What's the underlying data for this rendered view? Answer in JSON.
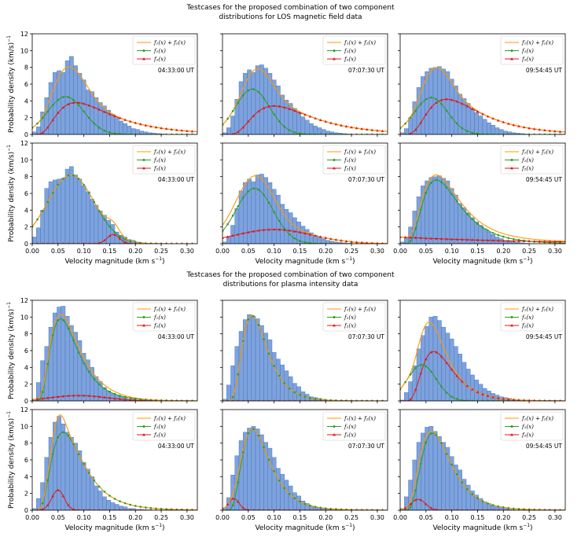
{
  "figure": {
    "group_titles": [
      [
        "Testcases for the proposed combination of two component",
        "distributions for LOS magnetic field data"
      ],
      [
        "Testcases for the proposed combination of two component",
        "distributions for plasma intensity data"
      ]
    ],
    "ylabel": "Probability density (km/s)",
    "ylabel_sup": "−1",
    "xlabel": "Velocity magnitude (km s",
    "xlabel_sup": "−1",
    "xlabel_end": ")",
    "legend": [
      "f₁(x) + f₂(x)",
      "f₁(x)",
      "f₂(x)"
    ],
    "x_ticks": [
      "0.00",
      "0.05",
      "0.10",
      "0.15",
      "0.20",
      "0.25",
      "0.30"
    ],
    "y_ticks": [
      "0",
      "2",
      "4",
      "6",
      "8",
      "10",
      "12"
    ],
    "colors": {
      "hist": "#7ea2dc",
      "hist_edge": "#3f6fbf",
      "sum": "#ff9900",
      "f1": "#2a9e2a",
      "f2": "#e01919"
    }
  },
  "chart_data": [
    {
      "type": "bar",
      "group": "LOS magnetic field",
      "row": 1,
      "col": 1,
      "timestamp": "04:33:00 UT",
      "xlim": [
        0,
        0.32
      ],
      "ylim": [
        0,
        12
      ],
      "bin_width": 0.008,
      "values": [
        0.3,
        0.9,
        2.7,
        4.4,
        6.2,
        7.4,
        7.6,
        7.4,
        8.8,
        9.3,
        8.2,
        7.3,
        6.5,
        5.3,
        5.1,
        4.4,
        3.8,
        3.4,
        2.9,
        2.4,
        2.0,
        1.6,
        1.3,
        1.0,
        0.7,
        0.6,
        0.4,
        0.3,
        0.2,
        0.15,
        0.1,
        0.05,
        0.02,
        0.01,
        0,
        0,
        0,
        0,
        0,
        0
      ],
      "series": [
        {
          "name": "f1",
          "shape": "gauss",
          "amp": 4.5,
          "mu": 0.065,
          "sigma": 0.035
        },
        {
          "name": "f2",
          "shape": "lognorm",
          "amp": 3.8,
          "mode": 0.085,
          "s": 0.6
        }
      ]
    },
    {
      "type": "bar",
      "group": "LOS magnetic field",
      "row": 1,
      "col": 2,
      "timestamp": "07:07:30 UT",
      "xlim": [
        0,
        0.32
      ],
      "ylim": [
        0,
        12
      ],
      "bin_width": 0.008,
      "values": [
        0.2,
        0.8,
        2.2,
        4.2,
        6.3,
        7.3,
        7.7,
        7.4,
        8.2,
        8.3,
        7.9,
        7.3,
        6.5,
        5.8,
        4.7,
        4.1,
        3.7,
        3.1,
        2.6,
        2.1,
        1.7,
        1.3,
        1.0,
        0.8,
        0.6,
        0.4,
        0.3,
        0.2,
        0.15,
        0.1,
        0.05,
        0.02,
        0.01,
        0,
        0,
        0,
        0,
        0,
        0,
        0
      ],
      "series": [
        {
          "name": "f1",
          "shape": "gauss",
          "amp": 5.4,
          "mu": 0.058,
          "sigma": 0.033
        },
        {
          "name": "f2",
          "shape": "lognorm",
          "amp": 3.4,
          "mode": 0.1,
          "s": 0.55
        }
      ]
    },
    {
      "type": "bar",
      "group": "LOS magnetic field",
      "row": 1,
      "col": 3,
      "timestamp": "09:54:45 UT",
      "xlim": [
        0,
        0.32
      ],
      "ylim": [
        0,
        12
      ],
      "bin_width": 0.008,
      "values": [
        0.2,
        0.7,
        2.0,
        3.9,
        5.6,
        6.9,
        7.5,
        7.9,
        8.0,
        8.1,
        7.8,
        7.5,
        6.6,
        5.8,
        4.8,
        4.3,
        3.7,
        3.1,
        2.6,
        2.2,
        1.8,
        1.4,
        1.1,
        0.8,
        0.6,
        0.4,
        0.3,
        0.2,
        0.15,
        0.1,
        0.05,
        0.02,
        0.01,
        0,
        0,
        0,
        0,
        0,
        0,
        0
      ],
      "series": [
        {
          "name": "f1",
          "shape": "gauss",
          "amp": 4.4,
          "mu": 0.06,
          "sigma": 0.032
        },
        {
          "name": "f2",
          "shape": "lognorm",
          "amp": 4.2,
          "mode": 0.09,
          "s": 0.55
        }
      ]
    },
    {
      "type": "bar",
      "group": "LOS magnetic field",
      "row": 2,
      "col": 1,
      "timestamp": "04:33:00 UT",
      "xlim": [
        0,
        0.32
      ],
      "ylim": [
        0,
        12
      ],
      "bin_width": 0.008,
      "values": [
        0.8,
        1.9,
        4.0,
        6.6,
        7.4,
        7.6,
        7.7,
        7.8,
        8.9,
        9.2,
        8.2,
        7.7,
        6.9,
        6.2,
        5.3,
        4.6,
        3.9,
        3.4,
        2.8,
        2.3,
        1.4,
        1.0,
        0.8,
        0.5,
        0.4,
        0.2,
        0.1,
        0.05,
        0.02,
        0,
        0,
        0,
        0,
        0,
        0,
        0,
        0,
        0,
        0,
        0
      ],
      "series": [
        {
          "name": "f1",
          "shape": "gauss",
          "amp": 8.2,
          "mu": 0.075,
          "sigma": 0.045
        },
        {
          "name": "f2",
          "shape": "gauss",
          "amp": 1.1,
          "mu": 0.157,
          "sigma": 0.012
        }
      ]
    },
    {
      "type": "bar",
      "group": "LOS magnetic field",
      "row": 2,
      "col": 2,
      "timestamp": "07:07:30 UT",
      "xlim": [
        0,
        0.32
      ],
      "ylim": [
        0,
        12
      ],
      "bin_width": 0.008,
      "values": [
        0.2,
        0.8,
        2.2,
        4.2,
        6.3,
        7.3,
        7.7,
        7.4,
        8.2,
        8.3,
        7.9,
        7.3,
        6.5,
        5.8,
        4.7,
        4.1,
        3.7,
        3.1,
        2.6,
        2.1,
        1.7,
        1.3,
        1.0,
        0.8,
        0.6,
        0.4,
        0.3,
        0.2,
        0.15,
        0.1,
        0.05,
        0.02,
        0.01,
        0,
        0,
        0,
        0,
        0,
        0,
        0
      ],
      "series": [
        {
          "name": "f1",
          "shape": "gauss",
          "amp": 6.6,
          "mu": 0.062,
          "sigma": 0.036
        },
        {
          "name": "f2",
          "shape": "gauss",
          "amp": 1.7,
          "mu": 0.1,
          "sigma": 0.075
        }
      ]
    },
    {
      "type": "bar",
      "group": "LOS magnetic field",
      "row": 2,
      "col": 3,
      "timestamp": "09:54:45 UT",
      "xlim": [
        0,
        0.32
      ],
      "ylim": [
        0,
        12
      ],
      "bin_width": 0.008,
      "values": [
        0.2,
        0.7,
        2.0,
        3.9,
        5.6,
        6.9,
        7.5,
        7.9,
        8.0,
        8.1,
        7.8,
        7.5,
        6.6,
        5.8,
        4.8,
        4.3,
        3.7,
        3.1,
        2.6,
        2.2,
        1.8,
        1.4,
        1.1,
        0.8,
        0.6,
        0.4,
        0.3,
        0.2,
        0.15,
        0.1,
        0.05,
        0.02,
        0.01,
        0,
        0,
        0,
        0,
        0,
        0,
        0
      ],
      "series": [
        {
          "name": "f1",
          "shape": "lognorm",
          "amp": 7.6,
          "mode": 0.07,
          "s": 0.5
        },
        {
          "name": "f2",
          "shape": "flat",
          "amp": 0.8,
          "decay": 0.0025
        }
      ]
    },
    {
      "type": "bar",
      "group": "plasma intensity",
      "row": 1,
      "col": 1,
      "timestamp": "04:33:00 UT",
      "xlim": [
        0,
        0.32
      ],
      "ylim": [
        0,
        12
      ],
      "bin_width": 0.008,
      "values": [
        0.2,
        2.2,
        4.8,
        6.5,
        8.8,
        10.5,
        11.2,
        11.3,
        10.1,
        9.0,
        8.2,
        7.2,
        5.7,
        4.9,
        4.0,
        2.9,
        2.3,
        1.6,
        1.2,
        0.9,
        0.7,
        0.5,
        0.4,
        0.2,
        0.2,
        0.1,
        0.1,
        0.05,
        0.05,
        0.02,
        0.01,
        0,
        0,
        0,
        0,
        0,
        0,
        0,
        0,
        0
      ],
      "series": [
        {
          "name": "f1",
          "shape": "lognorm",
          "amp": 9.8,
          "mode": 0.055,
          "s": 0.48
        },
        {
          "name": "f2",
          "shape": "gauss",
          "amp": 0.65,
          "mu": 0.09,
          "sigma": 0.055
        }
      ]
    },
    {
      "type": "bar",
      "group": "plasma intensity",
      "row": 1,
      "col": 2,
      "timestamp": "07:07:30 UT",
      "xlim": [
        0,
        0.32
      ],
      "ylim": [
        0,
        12
      ],
      "bin_width": 0.008,
      "values": [
        0.2,
        1.9,
        4.2,
        6.5,
        8.3,
        9.7,
        10.3,
        10.1,
        9.8,
        9.0,
        8.1,
        7.3,
        5.8,
        5.0,
        4.3,
        3.6,
        2.9,
        2.1,
        1.7,
        1.1,
        0.8,
        0.5,
        0.4,
        0.3,
        0.2,
        0.1,
        0.05,
        0.02,
        0.01,
        0,
        0,
        0,
        0,
        0,
        0,
        0,
        0,
        0,
        0,
        0
      ],
      "series": [
        {
          "name": "f1",
          "shape": "lognorm",
          "amp": 10.2,
          "mode": 0.057,
          "s": 0.42
        },
        {
          "name": "f2",
          "shape": "zero"
        }
      ]
    },
    {
      "type": "bar",
      "group": "plasma intensity",
      "row": 1,
      "col": 3,
      "timestamp": "09:54:45 UT",
      "xlim": [
        0,
        0.32
      ],
      "ylim": [
        0,
        12
      ],
      "bin_width": 0.008,
      "values": [
        0.1,
        1.0,
        2.3,
        4.2,
        6.2,
        7.8,
        8.9,
        10.0,
        10.1,
        9.6,
        8.8,
        8.1,
        7.4,
        6.5,
        5.6,
        4.6,
        3.8,
        3.1,
        2.5,
        2.0,
        1.5,
        1.2,
        0.9,
        0.7,
        0.5,
        0.4,
        0.3,
        0.2,
        0.1,
        0.1,
        0.05,
        0.05,
        0.02,
        0.02,
        0.01,
        0,
        0,
        0,
        0,
        0
      ],
      "series": [
        {
          "name": "f1",
          "shape": "gauss",
          "amp": 4.3,
          "mu": 0.042,
          "sigma": 0.028
        },
        {
          "name": "f2",
          "shape": "lognorm",
          "amp": 5.9,
          "mode": 0.065,
          "s": 0.45
        }
      ]
    },
    {
      "type": "bar",
      "group": "plasma intensity",
      "row": 2,
      "col": 1,
      "timestamp": "04:33:00 UT",
      "xlim": [
        0,
        0.32
      ],
      "ylim": [
        0,
        12
      ],
      "bin_width": 0.008,
      "values": [
        0.2,
        1.4,
        3.3,
        6.3,
        8.7,
        10.5,
        11.2,
        10.3,
        9.3,
        8.7,
        8.0,
        7.1,
        5.7,
        4.9,
        4.0,
        2.9,
        2.3,
        1.6,
        1.2,
        0.9,
        0.7,
        0.5,
        0.4,
        0.2,
        0.2,
        0.1,
        0.1,
        0.05,
        0.05,
        0.02,
        0.01,
        0,
        0,
        0,
        0,
        0,
        0,
        0,
        0,
        0
      ],
      "series": [
        {
          "name": "f1",
          "shape": "lognorm",
          "amp": 9.3,
          "mode": 0.06,
          "s": 0.5
        },
        {
          "name": "f2",
          "shape": "gauss",
          "amp": 2.4,
          "mu": 0.05,
          "sigma": 0.012
        }
      ]
    },
    {
      "type": "bar",
      "group": "plasma intensity",
      "row": 2,
      "col": 2,
      "timestamp": "07:07:30 UT",
      "xlim": [
        0,
        0.32
      ],
      "ylim": [
        0,
        12
      ],
      "bin_width": 0.008,
      "values": [
        0.3,
        1.5,
        4.2,
        6.5,
        8.3,
        9.3,
        9.8,
        10.0,
        9.7,
        9.0,
        8.1,
        7.4,
        6.3,
        5.0,
        4.3,
        3.6,
        2.9,
        2.1,
        1.7,
        1.1,
        0.8,
        0.5,
        0.4,
        0.3,
        0.2,
        0.1,
        0.05,
        0.02,
        0.01,
        0,
        0,
        0,
        0,
        0,
        0,
        0,
        0,
        0,
        0,
        0
      ],
      "series": [
        {
          "name": "f1",
          "shape": "lognorm",
          "amp": 9.7,
          "mode": 0.058,
          "s": 0.45
        },
        {
          "name": "f2",
          "shape": "gauss",
          "amp": 1.4,
          "mu": 0.022,
          "sigma": 0.01
        }
      ]
    },
    {
      "type": "bar",
      "group": "plasma intensity",
      "row": 2,
      "col": 3,
      "timestamp": "09:54:45 UT",
      "xlim": [
        0,
        0.32
      ],
      "ylim": [
        0,
        12
      ],
      "bin_width": 0.008,
      "values": [
        0.2,
        1.6,
        3.6,
        6.0,
        8.1,
        9.2,
        9.9,
        10.0,
        9.4,
        8.8,
        8.1,
        7.5,
        6.4,
        5.4,
        4.8,
        3.7,
        3.0,
        2.3,
        1.8,
        1.4,
        1.0,
        0.8,
        0.6,
        0.4,
        0.3,
        0.2,
        0.1,
        0.05,
        0.02,
        0.01,
        0,
        0,
        0,
        0,
        0,
        0,
        0,
        0,
        0,
        0
      ],
      "series": [
        {
          "name": "f1",
          "shape": "lognorm",
          "amp": 9.2,
          "mode": 0.063,
          "s": 0.45
        },
        {
          "name": "f2",
          "shape": "gauss",
          "amp": 1.3,
          "mu": 0.035,
          "sigma": 0.014
        }
      ]
    }
  ]
}
